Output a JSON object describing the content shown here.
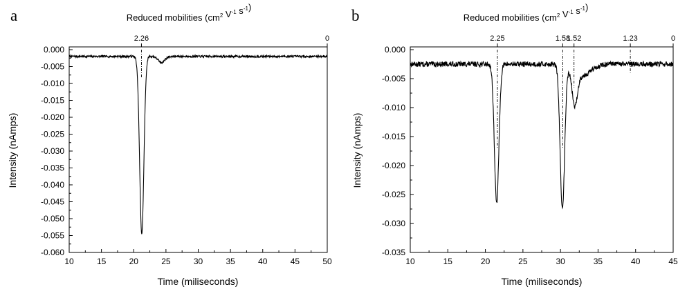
{
  "chart_data": [
    {
      "panel": "a",
      "type": "line",
      "xlabel": "Time (miliseconds)",
      "ylabel": "Intensity (nAmps)",
      "top_axis_label": {
        "text": "Reduced mobilities (cm",
        "sup1": "2",
        "mid1": " V",
        "sup2": "-1",
        "mid2": " s",
        "sup3": "-1",
        "end": ")"
      },
      "xlim": [
        10,
        50
      ],
      "ylim": [
        -0.06,
        0.001
      ],
      "x_ticks": [
        "10",
        "15",
        "20",
        "25",
        "30",
        "35",
        "40",
        "45",
        "50"
      ],
      "y_ticks": [
        "0.000",
        "-0.005",
        "-0.010",
        "-0.015",
        "-0.020",
        "-0.025",
        "-0.030",
        "-0.035",
        "-0.040",
        "-0.045",
        "-0.050",
        "-0.055",
        "-0.060"
      ],
      "top_ticks": [
        {
          "label": "2.26",
          "x": 21.2
        },
        {
          "label": "0",
          "x": 50.0
        }
      ],
      "baseline": -0.002,
      "peaks": [
        {
          "center": 21.25,
          "depth": -0.0525,
          "width": 0.33
        },
        {
          "center": 24.3,
          "depth": -0.0018,
          "width": 0.5
        }
      ],
      "marker_lines": [
        {
          "x": 21.2,
          "y_from": 0.0,
          "y_to": -0.0085
        }
      ],
      "grid": false,
      "series": [
        {
          "name": "",
          "color": "#000000"
        }
      ]
    },
    {
      "panel": "b",
      "type": "line",
      "xlabel": "Time (miliseconds)",
      "ylabel": "Intensity (nAmps)",
      "top_axis_label": {
        "text": "Reduced mobilities (cm",
        "sup1": "2",
        "mid1": " V",
        "sup2": "-1",
        "mid2": " s",
        "sup3": "-1",
        "end": ")"
      },
      "xlim": [
        10,
        45
      ],
      "ylim": [
        -0.035,
        0.001
      ],
      "x_ticks": [
        "10",
        "15",
        "20",
        "25",
        "30",
        "35",
        "40",
        "45"
      ],
      "y_ticks": [
        "0.000",
        "-0.005",
        "-0.010",
        "-0.015",
        "-0.020",
        "-0.025",
        "-0.030",
        "-0.035"
      ],
      "top_ticks": [
        {
          "label": "2.25",
          "x": 21.6
        },
        {
          "label": "1.58",
          "x": 30.3
        },
        {
          "label": "1.52",
          "x": 31.8
        },
        {
          "label": "1.23",
          "x": 39.3
        },
        {
          "label": "0",
          "x": 45.0
        }
      ],
      "baseline": -0.0025,
      "peaks": [
        {
          "center": 21.5,
          "depth": -0.024,
          "width": 0.3
        },
        {
          "center": 30.25,
          "depth": -0.0249,
          "width": 0.3
        },
        {
          "center": 31.9,
          "depth": -0.0058,
          "width": 0.35
        },
        {
          "center": 32.8,
          "depth": -0.002,
          "width": 1.2
        }
      ],
      "marker_lines": [
        {
          "x": 21.6,
          "y_from": 0.0,
          "y_to": -0.017
        },
        {
          "x": 30.3,
          "y_from": 0.0,
          "y_to": -0.017
        },
        {
          "x": 31.8,
          "y_from": 0.0,
          "y_to": -0.0065
        },
        {
          "x": 39.3,
          "y_from": 0.0,
          "y_to": -0.004
        }
      ],
      "grid": false,
      "series": [
        {
          "name": "",
          "color": "#000000"
        }
      ]
    }
  ]
}
